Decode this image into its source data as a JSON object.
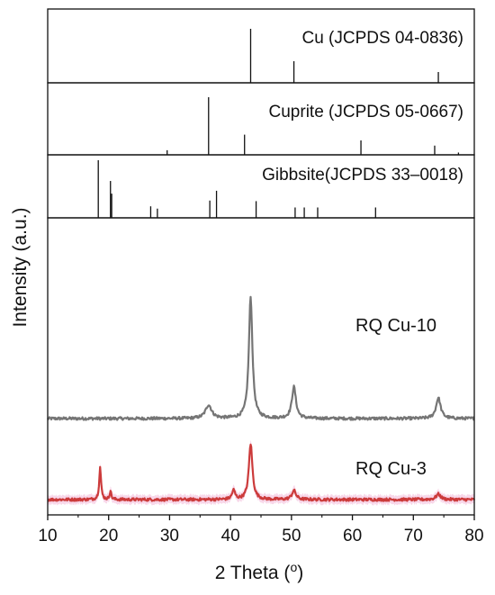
{
  "chart_data": {
    "type": "line",
    "xlabel": "2 Theta (",
    "xlabel_unit": "o",
    "xlabel_close": ")",
    "ylabel": "Intensity (a.u.)",
    "xlim": [
      10,
      80
    ],
    "xticks": [
      10,
      20,
      30,
      40,
      50,
      60,
      70,
      80
    ],
    "y_tick_labels": false,
    "reference_panels": [
      {
        "label": "Cu (JCPDS 04-0836)",
        "lines": [
          {
            "x": 43.3,
            "rel": 100
          },
          {
            "x": 50.4,
            "rel": 40
          },
          {
            "x": 74.1,
            "rel": 20
          }
        ]
      },
      {
        "label": "Cuprite (JCPDS 05-0667)",
        "lines": [
          {
            "x": 29.6,
            "rel": 8
          },
          {
            "x": 36.4,
            "rel": 100
          },
          {
            "x": 42.3,
            "rel": 35
          },
          {
            "x": 61.4,
            "rel": 25
          },
          {
            "x": 73.5,
            "rel": 16
          },
          {
            "x": 77.4,
            "rel": 4
          }
        ]
      },
      {
        "label": "Gibbsite(JCPDS 33–0018)",
        "lines": [
          {
            "x": 18.3,
            "rel": 100
          },
          {
            "x": 20.3,
            "rel": 64
          },
          {
            "x": 20.5,
            "rel": 42
          },
          {
            "x": 26.9,
            "rel": 20
          },
          {
            "x": 28.0,
            "rel": 16
          },
          {
            "x": 36.6,
            "rel": 30
          },
          {
            "x": 37.7,
            "rel": 47
          },
          {
            "x": 44.2,
            "rel": 29
          },
          {
            "x": 50.6,
            "rel": 18
          },
          {
            "x": 52.1,
            "rel": 18
          },
          {
            "x": 54.3,
            "rel": 18
          },
          {
            "x": 63.8,
            "rel": 18
          }
        ]
      }
    ],
    "series": [
      {
        "name": "RQ Cu-10",
        "color": "#757575",
        "baseline": 5.0,
        "peaks": [
          {
            "x": 36.4,
            "height": 15,
            "width": 0.6
          },
          {
            "x": 43.3,
            "height": 135,
            "width": 0.35
          },
          {
            "x": 50.4,
            "height": 35,
            "width": 0.4
          },
          {
            "x": 74.1,
            "height": 23,
            "width": 0.45
          }
        ]
      },
      {
        "name": "RQ Cu-3",
        "color": "#cc3b3b",
        "shade_color": "#f6c9e2",
        "baseline": 5.0,
        "peaks": [
          {
            "x": 18.6,
            "height": 36,
            "width": 0.18
          },
          {
            "x": 20.3,
            "height": 10,
            "width": 0.15
          },
          {
            "x": 40.5,
            "height": 10,
            "width": 0.3
          },
          {
            "x": 43.3,
            "height": 62,
            "width": 0.35
          },
          {
            "x": 50.4,
            "height": 10,
            "width": 0.4
          },
          {
            "x": 74.1,
            "height": 6,
            "width": 0.45
          }
        ]
      }
    ]
  }
}
